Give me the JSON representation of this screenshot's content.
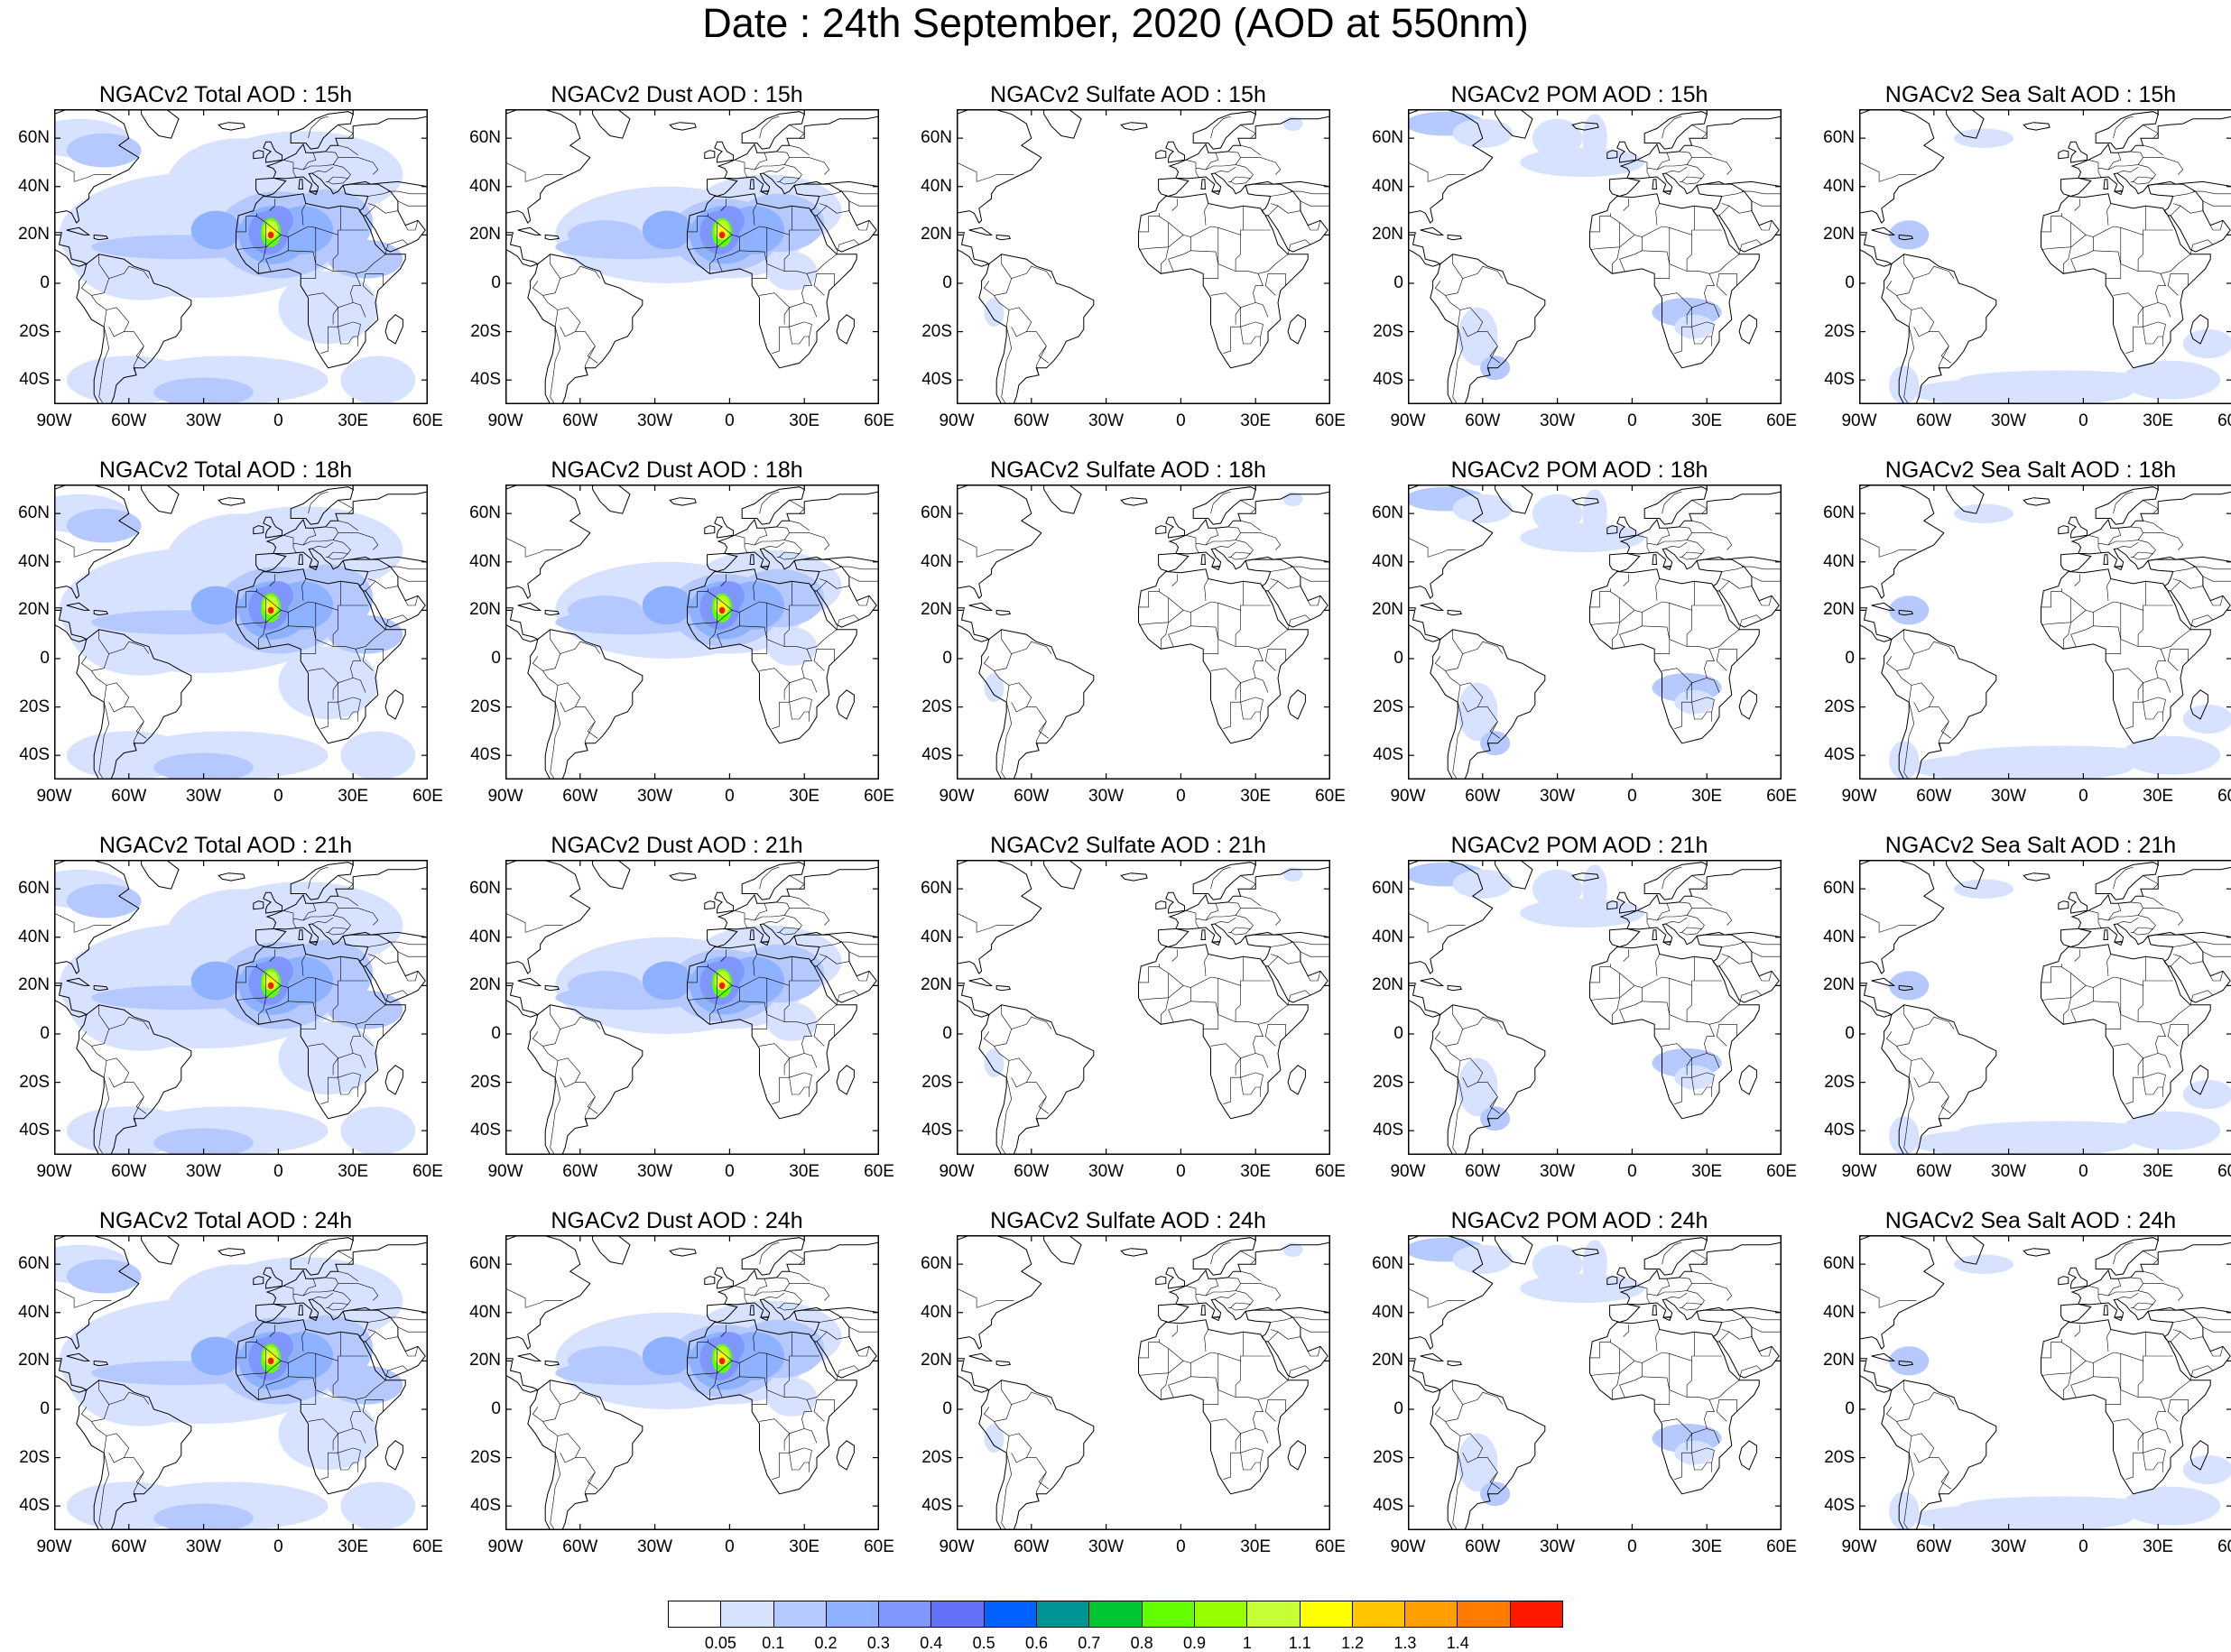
{
  "title": "Date : 24th September, 2020 (AOD at 550nm)",
  "panels": [
    [
      "NGACv2 Total AOD : 15h",
      "NGACv2 Dust AOD : 15h",
      "NGACv2 Sulfate AOD : 15h",
      "NGACv2 POM AOD : 15h",
      "NGACv2 Sea Salt AOD : 15h"
    ],
    [
      "NGACv2 Total AOD : 18h",
      "NGACv2 Dust AOD : 18h",
      "NGACv2 Sulfate AOD : 18h",
      "NGACv2 POM AOD : 18h",
      "NGACv2 Sea Salt AOD : 18h"
    ],
    [
      "NGACv2 Total AOD : 21h",
      "NGACv2 Dust AOD : 21h",
      "NGACv2 Sulfate AOD : 21h",
      "NGACv2 POM AOD : 21h",
      "NGACv2 Sea Salt AOD : 21h"
    ],
    [
      "NGACv2 Total AOD : 24h",
      "NGACv2 Dust AOD : 24h",
      "NGACv2 Sulfate AOD : 24h",
      "NGACv2 POM AOD : 24h",
      "NGACv2 Sea Salt  AOD : 24h"
    ]
  ],
  "panel_species": [
    "total",
    "dust",
    "sulfate",
    "pom",
    "seasalt"
  ],
  "lat_ticks": [
    "60N",
    "40N",
    "20N",
    "0",
    "20S",
    "40S"
  ],
  "lon_ticks": [
    "90W",
    "60W",
    "30W",
    "0",
    "30E",
    "60E"
  ],
  "lat_range": [
    -50,
    72
  ],
  "lon_range": [
    -90,
    60
  ],
  "colorbar": {
    "colors": [
      "#ffffff",
      "#d6e2ff",
      "#b5c9ff",
      "#8eb2ff",
      "#7f96ff",
      "#6370f8",
      "#0063ff",
      "#009696",
      "#00c633",
      "#63ff00",
      "#96ff00",
      "#c6ff33",
      "#ffff00",
      "#ffc600",
      "#ffa000",
      "#ff7c00",
      "#ff1900"
    ],
    "labels": [
      "0.05",
      "0.1",
      "0.2",
      "0.3",
      "0.4",
      "0.5",
      "0.6",
      "0.7",
      "0.8",
      "0.9",
      "1",
      "1.1",
      "1.2",
      "1.3",
      "1.4"
    ]
  }
}
